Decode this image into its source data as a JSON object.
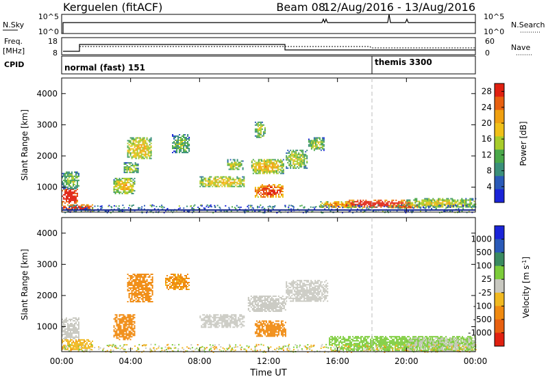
{
  "title": {
    "station": "Kerguelen (fitACF)",
    "beam": "Beam 08",
    "date_range": "12/Aug/2016 - 13/Aug/2016"
  },
  "header_panels": {
    "nsky": {
      "label": "N.Sky",
      "ticks": [
        "10^5",
        "10^0"
      ],
      "right_label": "N.Search",
      "right_ticks": [
        "10^5",
        "10^0"
      ]
    },
    "freq": {
      "label_line1": "Freq.",
      "label_line2": "[MHz]",
      "ticks": [
        "18",
        "8"
      ],
      "right_label": "Nave",
      "right_ticks": [
        "60",
        "0"
      ]
    },
    "cpid": {
      "label": "CPID",
      "modes": [
        {
          "start_hour": 0,
          "end_hour": 18,
          "name": "normal (fast) 151"
        },
        {
          "start_hour": 18,
          "end_hour": 24,
          "name": "themis 3300"
        }
      ]
    }
  },
  "chart_data": [
    {
      "type": "heatmap",
      "panel": "power",
      "xlabel": "",
      "ylabel": "Slant Range [km]",
      "xlim": [
        0,
        24
      ],
      "ylim": [
        200,
        4500
      ],
      "yticks": [
        1000,
        2000,
        3000,
        4000
      ],
      "colorbar": {
        "label": "Power [dB]",
        "ticks": [
          "4",
          "8",
          "12",
          "16",
          "20",
          "24",
          "28"
        ],
        "range": [
          0,
          30
        ]
      },
      "regions": [
        {
          "t0": 0.0,
          "t1": 0.9,
          "r0": 500,
          "r1": 950,
          "value": 27
        },
        {
          "t0": 0.0,
          "t1": 1.8,
          "r0": 250,
          "r1": 450,
          "value": 25
        },
        {
          "t0": 0.0,
          "t1": 1.0,
          "r0": 950,
          "r1": 1500,
          "value": 8
        },
        {
          "t0": 3.0,
          "t1": 4.2,
          "r0": 800,
          "r1": 1300,
          "value": 14
        },
        {
          "t0": 3.8,
          "t1": 5.2,
          "r0": 1900,
          "r1": 2600,
          "value": 14
        },
        {
          "t0": 3.6,
          "t1": 4.4,
          "r0": 1450,
          "r1": 1800,
          "value": 10
        },
        {
          "t0": 6.4,
          "t1": 7.4,
          "r0": 2100,
          "r1": 2700,
          "value": 8
        },
        {
          "t0": 8.0,
          "t1": 10.6,
          "r0": 1000,
          "r1": 1350,
          "value": 13
        },
        {
          "t0": 9.6,
          "t1": 10.5,
          "r0": 1550,
          "r1": 1900,
          "value": 10
        },
        {
          "t0": 11.2,
          "t1": 11.8,
          "r0": 2600,
          "r1": 3100,
          "value": 10
        },
        {
          "t0": 11.0,
          "t1": 12.9,
          "r0": 1450,
          "r1": 1900,
          "value": 14
        },
        {
          "t0": 11.2,
          "t1": 12.8,
          "r0": 700,
          "r1": 1100,
          "value": 22
        },
        {
          "t0": 13.0,
          "t1": 14.2,
          "r0": 1600,
          "r1": 2200,
          "value": 11
        },
        {
          "t0": 14.3,
          "t1": 15.2,
          "r0": 2200,
          "r1": 2600,
          "value": 10
        },
        {
          "t0": 15.0,
          "t1": 17.0,
          "r0": 350,
          "r1": 550,
          "value": 17
        },
        {
          "t0": 16.5,
          "t1": 20.2,
          "r0": 380,
          "r1": 600,
          "value": 26
        },
        {
          "t0": 20.0,
          "t1": 24.0,
          "r0": 350,
          "r1": 650,
          "value": 12
        },
        {
          "t0": 19.0,
          "t1": 20.6,
          "r0": 330,
          "r1": 450,
          "value": 22
        }
      ]
    },
    {
      "type": "heatmap",
      "panel": "velocity",
      "xlabel": "Time UT",
      "ylabel": "Slant Range [km]",
      "xlim": [
        0,
        24
      ],
      "ylim": [
        200,
        4500
      ],
      "yticks": [
        1000,
        2000,
        3000,
        4000
      ],
      "xtick_labels": [
        "00:00",
        "04:00",
        "08:00",
        "12:00",
        "16:00",
        "20:00",
        "00:00"
      ],
      "colorbar": {
        "label": "Velocity [m s^-1]",
        "ticks": [
          "1000",
          "500",
          "100",
          "25",
          "-25",
          "-100",
          "-500",
          "-1000"
        ]
      },
      "regions": [
        {
          "t0": 0.0,
          "t1": 1.8,
          "r0": 250,
          "r1": 600,
          "value": -80
        },
        {
          "t0": 0.0,
          "t1": 1.0,
          "r0": 600,
          "r1": 1300,
          "value": 0
        },
        {
          "t0": 3.0,
          "t1": 4.2,
          "r0": 600,
          "r1": 1400,
          "value": -150
        },
        {
          "t0": 3.8,
          "t1": 5.3,
          "r0": 1800,
          "r1": 2700,
          "value": -200
        },
        {
          "t0": 6.0,
          "t1": 7.4,
          "r0": 2200,
          "r1": 2700,
          "value": -120
        },
        {
          "t0": 8.0,
          "t1": 10.6,
          "r0": 1000,
          "r1": 1400,
          "value": 0
        },
        {
          "t0": 10.8,
          "t1": 13.0,
          "r0": 1500,
          "r1": 2000,
          "value": 0
        },
        {
          "t0": 11.2,
          "t1": 13.0,
          "r0": 700,
          "r1": 1200,
          "value": -250
        },
        {
          "t0": 13.0,
          "t1": 15.4,
          "r0": 1800,
          "r1": 2500,
          "value": 0
        },
        {
          "t0": 15.5,
          "t1": 24.0,
          "r0": 250,
          "r1": 700,
          "value": 70
        },
        {
          "t0": 20.0,
          "t1": 24.0,
          "r0": 250,
          "r1": 650,
          "value": 20
        }
      ]
    }
  ]
}
